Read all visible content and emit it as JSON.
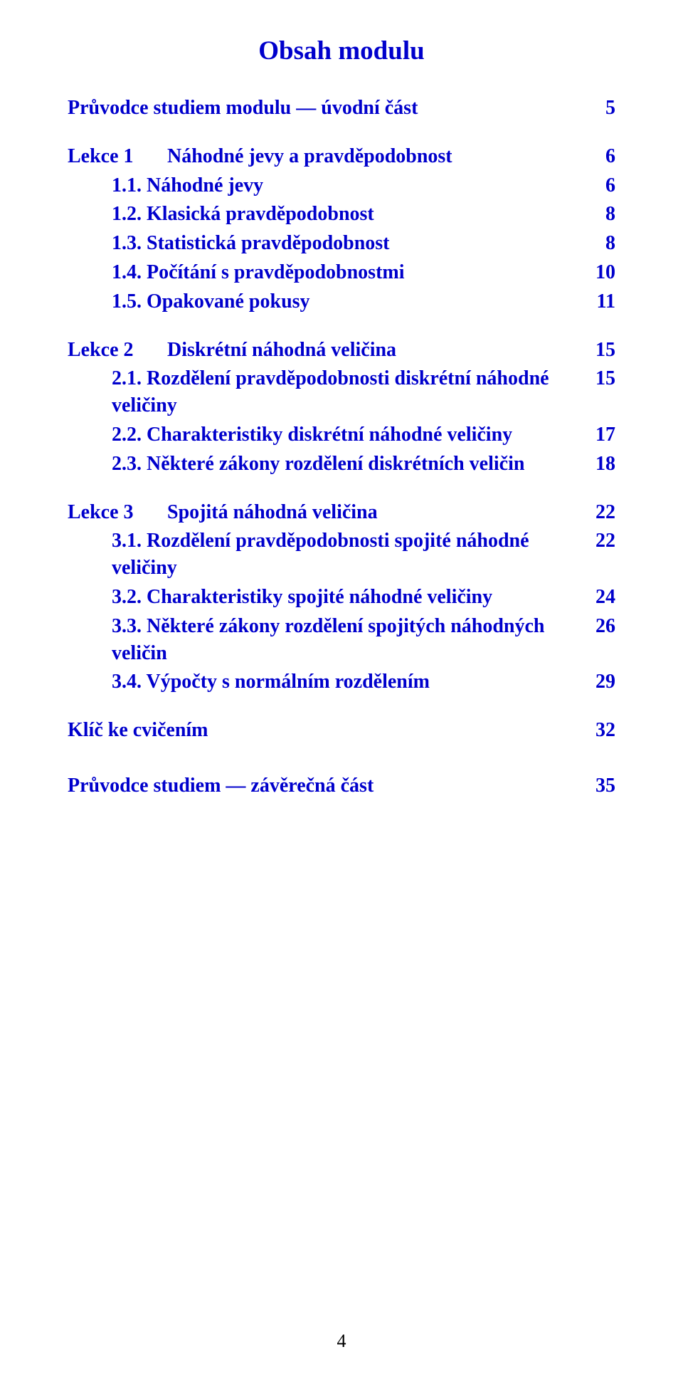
{
  "title": "Obsah modulu",
  "intro": {
    "label": "Průvodce studiem modulu — úvodní část",
    "page": "5"
  },
  "sections": [
    {
      "num": "Lekce 1",
      "title": "Náhodné jevy a pravděpodobnost",
      "page": "6",
      "items": [
        {
          "label": "1.1. Náhodné jevy",
          "page": "6"
        },
        {
          "label": "1.2. Klasická pravděpodobnost",
          "page": "8"
        },
        {
          "label": "1.3. Statistická pravděpodobnost",
          "page": "8"
        },
        {
          "label": "1.4. Počítání s pravděpodobnostmi",
          "page": "10"
        },
        {
          "label": "1.5. Opakované pokusy",
          "page": "11"
        }
      ]
    },
    {
      "num": "Lekce 2",
      "title": "Diskrétní náhodná veličina",
      "page": "15",
      "items": [
        {
          "label": "2.1. Rozdělení pravděpodobnosti diskrétní náhodné veličiny",
          "page": "15"
        },
        {
          "label": "2.2. Charakteristiky diskrétní náhodné veličiny",
          "page": "17"
        },
        {
          "label": "2.3. Některé zákony rozdělení diskrétních veličin",
          "page": "18"
        }
      ]
    },
    {
      "num": "Lekce 3",
      "title": "Spojitá náhodná veličina",
      "page": "22",
      "items": [
        {
          "label": "3.1. Rozdělení pravděpodobnosti spojité náhodné veličiny",
          "page": "22"
        },
        {
          "label": "3.2.  Charakteristiky spojité náhodné veličiny",
          "page": "24"
        },
        {
          "label": "3.3.  Některé zákony rozdělení spojitých náhodných veličin",
          "page": "26"
        },
        {
          "label": "3.4.  Výpočty s normálním rozdělením",
          "page": "29"
        }
      ]
    }
  ],
  "key": {
    "label": "Klíč ke cvičením",
    "page": "32"
  },
  "guide": {
    "label": "Průvodce studiem — závěrečná část",
    "page": "35"
  },
  "pageNumber": "4",
  "colors": {
    "link": "#0000cc",
    "text": "#000000",
    "background": "#ffffff"
  },
  "typography": {
    "family": "Times New Roman",
    "title_pt": 28,
    "body_pt": 21
  }
}
